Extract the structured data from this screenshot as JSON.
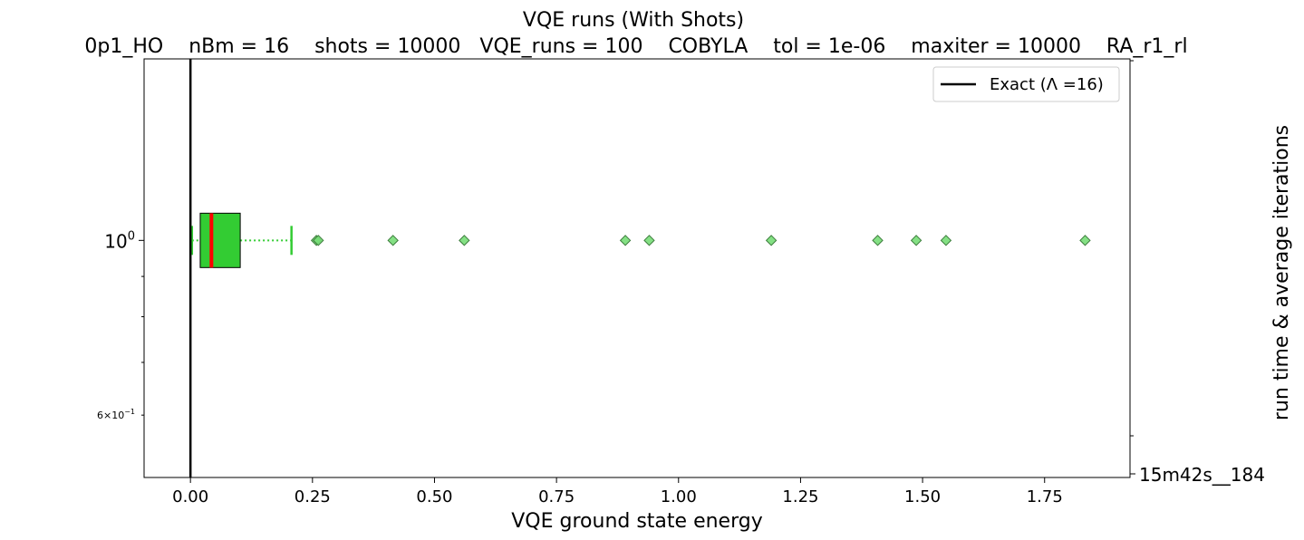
{
  "chart_data": {
    "type": "boxplot",
    "orientation": "horizontal",
    "title": "VQE runs (With Shots)",
    "subtitle": "0p1_HO    nBm = 16    shots = 10000   VQE_runs = 100    COBYLA    tol = 1e-06    maxiter = 10000    RA_r1_rl",
    "xlabel": "VQE ground state energy",
    "ylabel_right": "run time & average iterations",
    "xlim": [
      -0.095,
      1.925
    ],
    "xticks": [
      0.0,
      0.25,
      0.5,
      0.75,
      1.0,
      1.25,
      1.5,
      1.75
    ],
    "xtick_labels": [
      "0.00",
      "0.25",
      "0.50",
      "0.75",
      "1.00",
      "1.25",
      "1.50",
      "1.75"
    ],
    "yscale": "log",
    "ylim": [
      0.5,
      1.7
    ],
    "ytick_labels": [
      {
        "value": 1.0,
        "label": "10",
        "exp": "0"
      }
    ],
    "ytick_minor_labels": [
      {
        "value": 0.6,
        "label": "6×10",
        "exp": "−1"
      }
    ],
    "ytick_minor": [
      0.6,
      0.7,
      0.8,
      0.9
    ],
    "right_ytick_labels": [
      "15m42s__184"
    ],
    "box": {
      "y": 1.0,
      "whisker_low": 0.003,
      "q1": 0.02,
      "median": 0.043,
      "q3": 0.102,
      "whisker_high": 0.207,
      "fill": "#33cc33",
      "median_color": "#ff0000",
      "whisker_color": "#33cc33"
    },
    "outliers": [
      0.258,
      0.262,
      0.415,
      0.561,
      0.891,
      0.94,
      1.19,
      1.408,
      1.487,
      1.548,
      1.833
    ],
    "outlier_color": "#77dd77",
    "reference_line": {
      "x": 0.0,
      "label": "Exact (Λ =16)",
      "color": "#000000"
    },
    "legend": {
      "position": "top-right"
    }
  }
}
